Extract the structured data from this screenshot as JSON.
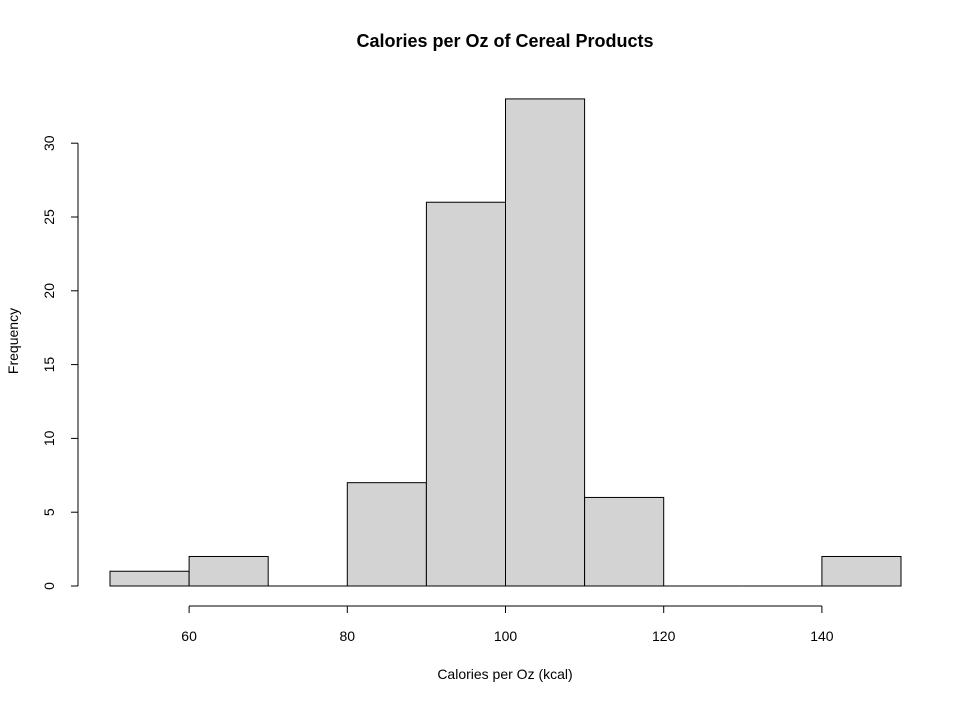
{
  "chart_data": {
    "type": "bar",
    "title": "Calories per Oz of Cereal Products",
    "xlabel": "Calories per Oz (kcal)",
    "ylabel": "Frequency",
    "bins": [
      {
        "start": 50,
        "end": 60,
        "count": 1
      },
      {
        "start": 60,
        "end": 70,
        "count": 2
      },
      {
        "start": 70,
        "end": 80,
        "count": 0
      },
      {
        "start": 80,
        "end": 90,
        "count": 7
      },
      {
        "start": 90,
        "end": 100,
        "count": 26
      },
      {
        "start": 100,
        "end": 110,
        "count": 33
      },
      {
        "start": 110,
        "end": 120,
        "count": 6
      },
      {
        "start": 120,
        "end": 130,
        "count": 0
      },
      {
        "start": 130,
        "end": 140,
        "count": 0
      },
      {
        "start": 140,
        "end": 150,
        "count": 2
      }
    ],
    "xlim": [
      50,
      150
    ],
    "ylim": [
      0,
      33
    ],
    "x_ticks": [
      60,
      80,
      100,
      120,
      140
    ],
    "y_ticks": [
      0,
      5,
      10,
      15,
      20,
      25,
      30
    ],
    "grid": false,
    "bar_fill": "#d3d3d3",
    "bar_stroke": "#000000"
  }
}
